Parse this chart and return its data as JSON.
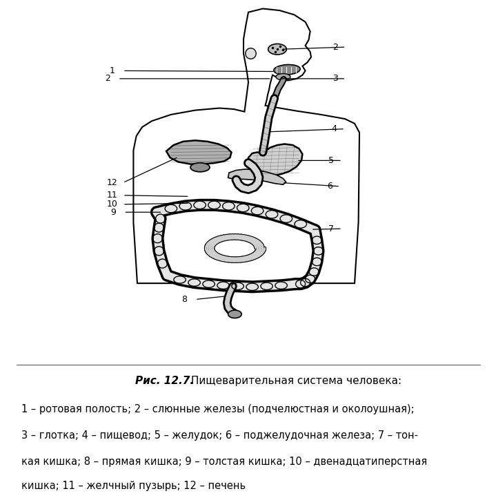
{
  "title_italic": "Рис. 12.7.",
  "title_normal": " Пищеварительная система человека:",
  "caption_lines": [
    "1 – ротовая полость; 2 – слюнные железы (подчелюстная и околоушная);",
    "3 – глотка; 4 – пищевод; 5 – желудок; 6 – поджелудочная железа; 7 – тон-",
    "кая кишка; 8 – прямая кишка; 9 – толстая кишка; 10 – двенадцатиперстная",
    "кишка; 11 – желчный пузырь; 12 – печень"
  ],
  "fig_width": 7.0,
  "fig_height": 6.93
}
